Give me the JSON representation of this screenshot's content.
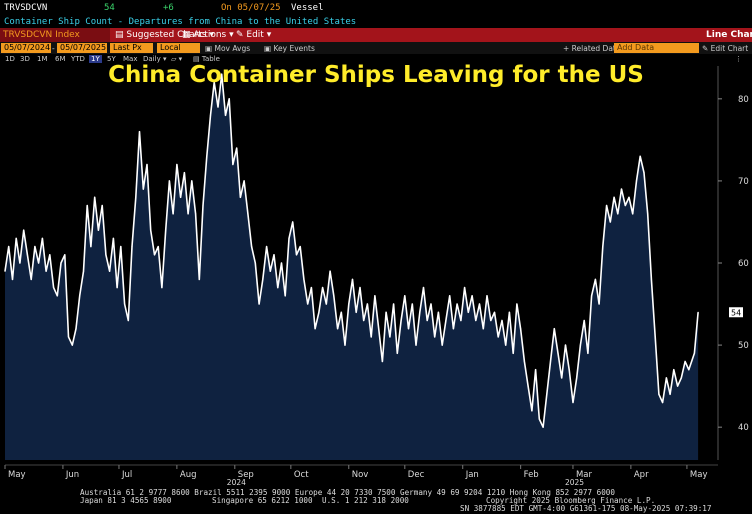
{
  "header": {
    "ticker": "TRVSDCVN",
    "last_value": "54",
    "change": "+6",
    "date_label": "On 05/07/25",
    "unit": "Vessel",
    "description": "Container Ship Count - Departures from China to the United States"
  },
  "toolbar": {
    "security": "TRVSDCVN Index",
    "suggested_charts": "Suggested Charts",
    "actions": "Actions",
    "edit": "Edit",
    "chart_type": "Line Chart"
  },
  "controls": {
    "start_date": "05/07/2024",
    "end_date": "05/07/2025",
    "field": "Last Px",
    "currency": "Local CCY",
    "mov_avgs": "Mov Avgs",
    "key_events": "Key Events",
    "related_dat": "Related Dat",
    "add_data_placeholder": "Add Data",
    "edit_chart": "Edit Chart"
  },
  "ranges": {
    "items": [
      "1D",
      "3D",
      "1M",
      "6M",
      "YTD",
      "1Y",
      "5Y",
      "Max"
    ],
    "selected": "1Y",
    "period": "Daily",
    "table": "Table"
  },
  "chart_data": {
    "type": "area",
    "title": "China Container Ships Leaving for the US",
    "ylim": [
      36,
      84
    ],
    "yticks": [
      40,
      50,
      60,
      70,
      80
    ],
    "last_value_label": "54",
    "x_ticks": [
      {
        "label": "May",
        "x": "2024-05-01"
      },
      {
        "label": "Jun",
        "x": "2024-06-01"
      },
      {
        "label": "Jul",
        "x": "2024-07-01"
      },
      {
        "label": "Aug",
        "x": "2024-08-01"
      },
      {
        "label": "Sep",
        "x": "2024-09-01"
      },
      {
        "label": "Oct",
        "x": "2024-10-01"
      },
      {
        "label": "Nov",
        "x": "2024-11-01"
      },
      {
        "label": "Dec",
        "x": "2024-12-01"
      },
      {
        "label": "Jan",
        "x": "2025-01-01"
      },
      {
        "label": "Feb",
        "x": "2025-02-01"
      },
      {
        "label": "Mar",
        "x": "2025-03-01"
      },
      {
        "label": "Apr",
        "x": "2025-04-01"
      },
      {
        "label": "May",
        "x": "2025-05-01"
      }
    ],
    "year_labels": [
      {
        "label": "2024",
        "x": "2024-09-01"
      },
      {
        "label": "2025",
        "x": "2025-03-01"
      }
    ],
    "x_range": [
      "2024-05-01",
      "2025-05-08"
    ],
    "series": [
      {
        "values": [
          [
            "2024-05-01",
            59
          ],
          [
            "2024-05-03",
            62
          ],
          [
            "2024-05-05",
            58
          ],
          [
            "2024-05-07",
            63
          ],
          [
            "2024-05-09",
            60
          ],
          [
            "2024-05-11",
            64
          ],
          [
            "2024-05-13",
            61
          ],
          [
            "2024-05-15",
            58
          ],
          [
            "2024-05-17",
            62
          ],
          [
            "2024-05-19",
            60
          ],
          [
            "2024-05-21",
            63
          ],
          [
            "2024-05-23",
            59
          ],
          [
            "2024-05-25",
            61
          ],
          [
            "2024-05-27",
            57
          ],
          [
            "2024-05-29",
            56
          ],
          [
            "2024-05-31",
            60
          ],
          [
            "2024-06-02",
            61
          ],
          [
            "2024-06-04",
            51
          ],
          [
            "2024-06-06",
            50
          ],
          [
            "2024-06-08",
            52
          ],
          [
            "2024-06-10",
            56
          ],
          [
            "2024-06-12",
            59
          ],
          [
            "2024-06-14",
            67
          ],
          [
            "2024-06-16",
            62
          ],
          [
            "2024-06-18",
            68
          ],
          [
            "2024-06-20",
            64
          ],
          [
            "2024-06-22",
            67
          ],
          [
            "2024-06-24",
            61
          ],
          [
            "2024-06-26",
            59
          ],
          [
            "2024-06-28",
            63
          ],
          [
            "2024-06-30",
            57
          ],
          [
            "2024-07-02",
            62
          ],
          [
            "2024-07-04",
            55
          ],
          [
            "2024-07-06",
            53
          ],
          [
            "2024-07-08",
            62
          ],
          [
            "2024-07-10",
            68
          ],
          [
            "2024-07-12",
            76
          ],
          [
            "2024-07-14",
            69
          ],
          [
            "2024-07-16",
            72
          ],
          [
            "2024-07-18",
            64
          ],
          [
            "2024-07-20",
            61
          ],
          [
            "2024-07-22",
            62
          ],
          [
            "2024-07-24",
            57
          ],
          [
            "2024-07-26",
            64
          ],
          [
            "2024-07-28",
            70
          ],
          [
            "2024-07-30",
            66
          ],
          [
            "2024-08-01",
            72
          ],
          [
            "2024-08-03",
            68
          ],
          [
            "2024-08-05",
            71
          ],
          [
            "2024-08-07",
            66
          ],
          [
            "2024-08-09",
            70
          ],
          [
            "2024-08-11",
            66
          ],
          [
            "2024-08-13",
            58
          ],
          [
            "2024-08-15",
            67
          ],
          [
            "2024-08-17",
            73
          ],
          [
            "2024-08-19",
            78
          ],
          [
            "2024-08-21",
            82
          ],
          [
            "2024-08-23",
            79
          ],
          [
            "2024-08-25",
            83
          ],
          [
            "2024-08-27",
            78
          ],
          [
            "2024-08-29",
            80
          ],
          [
            "2024-08-31",
            72
          ],
          [
            "2024-09-02",
            74
          ],
          [
            "2024-09-04",
            68
          ],
          [
            "2024-09-06",
            70
          ],
          [
            "2024-09-08",
            66
          ],
          [
            "2024-09-10",
            62
          ],
          [
            "2024-09-12",
            60
          ],
          [
            "2024-09-14",
            55
          ],
          [
            "2024-09-16",
            58
          ],
          [
            "2024-09-18",
            62
          ],
          [
            "2024-09-20",
            59
          ],
          [
            "2024-09-22",
            61
          ],
          [
            "2024-09-24",
            57
          ],
          [
            "2024-09-26",
            60
          ],
          [
            "2024-09-28",
            56
          ],
          [
            "2024-09-30",
            63
          ],
          [
            "2024-10-02",
            65
          ],
          [
            "2024-10-04",
            61
          ],
          [
            "2024-10-06",
            62
          ],
          [
            "2024-10-08",
            58
          ],
          [
            "2024-10-10",
            55
          ],
          [
            "2024-10-12",
            57
          ],
          [
            "2024-10-14",
            52
          ],
          [
            "2024-10-16",
            54
          ],
          [
            "2024-10-18",
            57
          ],
          [
            "2024-10-20",
            55
          ],
          [
            "2024-10-22",
            59
          ],
          [
            "2024-10-24",
            56
          ],
          [
            "2024-10-26",
            52
          ],
          [
            "2024-10-28",
            54
          ],
          [
            "2024-10-30",
            50
          ],
          [
            "2024-11-01",
            55
          ],
          [
            "2024-11-03",
            58
          ],
          [
            "2024-11-05",
            54
          ],
          [
            "2024-11-07",
            57
          ],
          [
            "2024-11-09",
            53
          ],
          [
            "2024-11-11",
            55
          ],
          [
            "2024-11-13",
            51
          ],
          [
            "2024-11-15",
            56
          ],
          [
            "2024-11-17",
            52
          ],
          [
            "2024-11-19",
            48
          ],
          [
            "2024-11-21",
            54
          ],
          [
            "2024-11-23",
            51
          ],
          [
            "2024-11-25",
            55
          ],
          [
            "2024-11-27",
            49
          ],
          [
            "2024-11-29",
            53
          ],
          [
            "2024-12-01",
            56
          ],
          [
            "2024-12-03",
            52
          ],
          [
            "2024-12-05",
            55
          ],
          [
            "2024-12-07",
            50
          ],
          [
            "2024-12-09",
            54
          ],
          [
            "2024-12-11",
            57
          ],
          [
            "2024-12-13",
            53
          ],
          [
            "2024-12-15",
            55
          ],
          [
            "2024-12-17",
            51
          ],
          [
            "2024-12-19",
            54
          ],
          [
            "2024-12-21",
            50
          ],
          [
            "2024-12-23",
            53
          ],
          [
            "2024-12-25",
            56
          ],
          [
            "2024-12-27",
            52
          ],
          [
            "2024-12-29",
            55
          ],
          [
            "2024-12-31",
            53
          ],
          [
            "2025-01-02",
            57
          ],
          [
            "2025-01-04",
            54
          ],
          [
            "2025-01-06",
            56
          ],
          [
            "2025-01-08",
            53
          ],
          [
            "2025-01-10",
            55
          ],
          [
            "2025-01-12",
            52
          ],
          [
            "2025-01-14",
            56
          ],
          [
            "2025-01-16",
            53
          ],
          [
            "2025-01-18",
            54
          ],
          [
            "2025-01-20",
            51
          ],
          [
            "2025-01-22",
            53
          ],
          [
            "2025-01-24",
            50
          ],
          [
            "2025-01-26",
            54
          ],
          [
            "2025-01-28",
            49
          ],
          [
            "2025-01-30",
            55
          ],
          [
            "2025-02-01",
            52
          ],
          [
            "2025-02-03",
            48
          ],
          [
            "2025-02-05",
            45
          ],
          [
            "2025-02-07",
            42
          ],
          [
            "2025-02-09",
            47
          ],
          [
            "2025-02-11",
            41
          ],
          [
            "2025-02-13",
            40
          ],
          [
            "2025-02-15",
            44
          ],
          [
            "2025-02-17",
            48
          ],
          [
            "2025-02-19",
            52
          ],
          [
            "2025-02-21",
            49
          ],
          [
            "2025-02-23",
            46
          ],
          [
            "2025-02-25",
            50
          ],
          [
            "2025-02-27",
            47
          ],
          [
            "2025-03-01",
            43
          ],
          [
            "2025-03-03",
            46
          ],
          [
            "2025-03-05",
            50
          ],
          [
            "2025-03-07",
            53
          ],
          [
            "2025-03-09",
            49
          ],
          [
            "2025-03-11",
            56
          ],
          [
            "2025-03-13",
            58
          ],
          [
            "2025-03-15",
            55
          ],
          [
            "2025-03-17",
            62
          ],
          [
            "2025-03-19",
            67
          ],
          [
            "2025-03-21",
            65
          ],
          [
            "2025-03-23",
            68
          ],
          [
            "2025-03-25",
            66
          ],
          [
            "2025-03-27",
            69
          ],
          [
            "2025-03-29",
            67
          ],
          [
            "2025-03-31",
            68
          ],
          [
            "2025-04-02",
            66
          ],
          [
            "2025-04-04",
            70
          ],
          [
            "2025-04-06",
            73
          ],
          [
            "2025-04-08",
            71
          ],
          [
            "2025-04-10",
            66
          ],
          [
            "2025-04-12",
            58
          ],
          [
            "2025-04-14",
            51
          ],
          [
            "2025-04-16",
            44
          ],
          [
            "2025-04-18",
            43
          ],
          [
            "2025-04-20",
            46
          ],
          [
            "2025-04-22",
            44
          ],
          [
            "2025-04-24",
            47
          ],
          [
            "2025-04-26",
            45
          ],
          [
            "2025-04-28",
            46
          ],
          [
            "2025-04-30",
            48
          ],
          [
            "2025-05-02",
            47
          ],
          [
            "2025-05-05",
            49
          ],
          [
            "2025-05-07",
            54
          ]
        ]
      }
    ],
    "grid": false
  },
  "footer": {
    "line1": "Australia 61 2 9777 8600 Brazil 5511 2395 9000 Europe 44 20 7330 7500 Germany 49 69 9204 1210 Hong Kong 852 2977 6000",
    "line2a": "Japan 81 3 4565 8900",
    "line2b": "Singapore 65 6212 1000",
    "line2c": "U.S. 1 212 318 2000",
    "line2d": "Copyright 2025 Bloomberg Finance L.P.",
    "line3": "SN 3877885 EDT  GMT-4:00 G61361-175 08-May-2025 07:39:17"
  },
  "colors": {
    "line": "#ffffff",
    "area_fill": "#0f2240",
    "title": "#ffec2a",
    "toolbar": "#a3141b",
    "change_green": "#3ad36b",
    "orange": "#f39a1e"
  }
}
